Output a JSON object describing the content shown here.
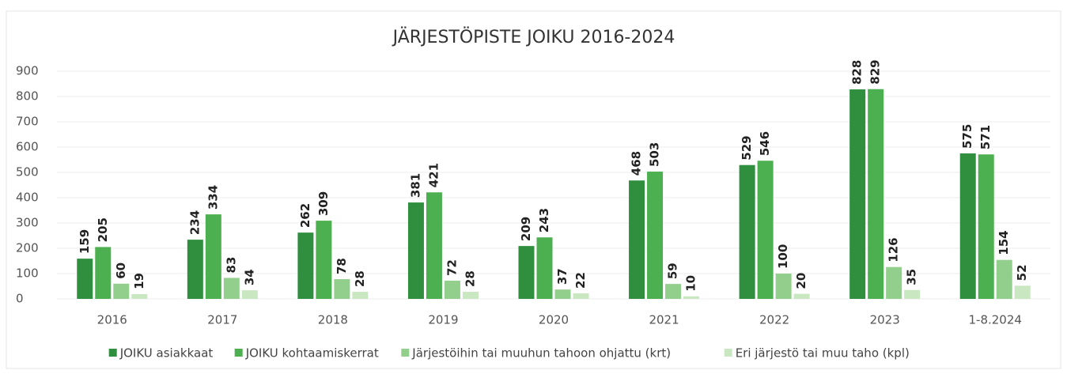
{
  "chart_data": {
    "type": "bar",
    "title": "JÄRJESTÖPISTE JOIKU 2016-2024",
    "categories": [
      "2016",
      "2017",
      "2018",
      "2019",
      "2020",
      "2021",
      "2022",
      "2023",
      "1-8.2024"
    ],
    "series": [
      {
        "name": "JOIKU asiakkaat",
        "color": "#2f8f3f",
        "values": [
          159,
          234,
          262,
          381,
          209,
          468,
          529,
          828,
          575
        ]
      },
      {
        "name": "JOIKU kohtaamiskerrat",
        "color": "#4caf50",
        "values": [
          205,
          334,
          309,
          421,
          243,
          503,
          546,
          829,
          571
        ]
      },
      {
        "name": "Järjestöihin tai muuhun tahoon ohjattu (krt)",
        "color": "#93cf8c",
        "values": [
          60,
          83,
          78,
          72,
          37,
          59,
          100,
          126,
          154
        ]
      },
      {
        "name": "Eri järjestö tai muu taho (kpl)",
        "color": "#c9e7c0",
        "values": [
          19,
          34,
          28,
          28,
          22,
          10,
          20,
          35,
          52
        ]
      }
    ],
    "ylim": [
      0,
      900
    ],
    "yticks": [
      0,
      100,
      200,
      300,
      400,
      500,
      600,
      700,
      800,
      900
    ],
    "grid": true,
    "legend": "bottom"
  }
}
